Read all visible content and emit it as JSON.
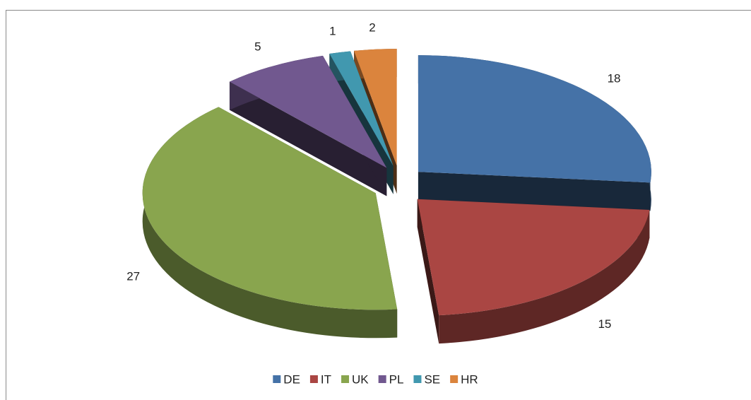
{
  "chart_data": {
    "type": "pie",
    "categories": [
      "DE",
      "IT",
      "UK",
      "PL",
      "SE",
      "HR"
    ],
    "values": [
      18,
      15,
      27,
      5,
      1,
      2
    ],
    "colors": [
      "#4572a7",
      "#aa4643",
      "#89a54e",
      "#71588f",
      "#4198af",
      "#db843d"
    ],
    "legend": "bottom"
  }
}
